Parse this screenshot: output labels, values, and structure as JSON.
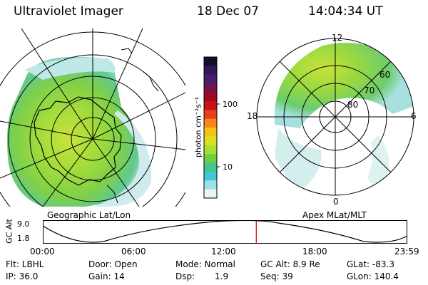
{
  "header": {
    "instrument": "Ultraviolet Imager",
    "date": "18 Dec 07",
    "time": "14:04:34 UT"
  },
  "left_panel": {
    "caption": "Geographic Lat/Lon"
  },
  "right_panel": {
    "caption": "Apex MLat/MLT",
    "mlt_labels": {
      "top": "12",
      "left": "18",
      "right": "6",
      "bottom": "0"
    },
    "lat_labels": [
      "60",
      "70",
      "80"
    ]
  },
  "colorbar": {
    "unit": "photon cm⁻²s⁻¹",
    "ticks": [
      "100",
      "10"
    ],
    "colors": [
      "#1a0b2e",
      "#2e1a57",
      "#4a1e6e",
      "#6e1450",
      "#9e0a1e",
      "#c8101a",
      "#e8401a",
      "#f8861a",
      "#f8c01a",
      "#d8e020",
      "#a8e030",
      "#70d040",
      "#40c890",
      "#40c8d8",
      "#a0e0e8",
      "#e8f4f6"
    ]
  },
  "orbit": {
    "axis_label": "GC Alt",
    "y_top": "9.0",
    "y_bottom": "1.8",
    "time_ticks": [
      "00:00",
      "06:00",
      "12:00",
      "18:00",
      "23:59"
    ],
    "current_time_fraction": 0.586
  },
  "status": {
    "flt": "Flt: LBHL",
    "ip": "IP: 36.0",
    "door": "Door: Open",
    "gain": "Gain: 14",
    "mode": "Mode: Normal",
    "dsp_label": "Dsp:",
    "dsp_value": "1.9",
    "gc_alt": "GC Alt: 8.9 Re",
    "seq": "Seq: 39",
    "glat": "GLat: -83.3",
    "glon": "GLon: 140.4"
  },
  "colors": {
    "aurora_green": "#8ed64a",
    "aurora_yellow": "#cde23a",
    "aurora_cyan": "#9fdcdc",
    "marker_red": "#cc0000"
  }
}
